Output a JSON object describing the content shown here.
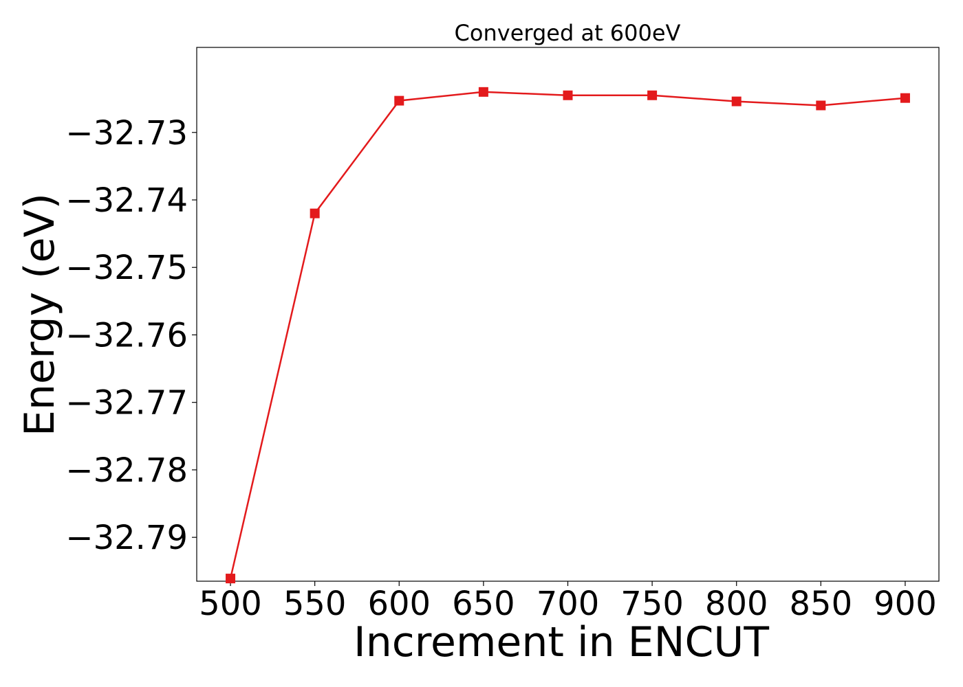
{
  "chart_data": {
    "type": "line",
    "title": "Converged at 600eV",
    "xlabel": "Increment in ENCUT",
    "ylabel": "Energy (eV)",
    "x": [
      500,
      550,
      600,
      650,
      700,
      750,
      800,
      850,
      900
    ],
    "x_tick_labels": [
      "500",
      "550",
      "600",
      "650",
      "700",
      "750",
      "800",
      "850",
      "900"
    ],
    "y_ticks": [
      -32.73,
      -32.74,
      -32.75,
      -32.76,
      -32.77,
      -32.78,
      -32.79
    ],
    "y_tick_labels": [
      "−32.73",
      "−32.74",
      "−32.75",
      "−32.76",
      "−32.77",
      "−32.78",
      "−32.79"
    ],
    "xlim": [
      480,
      920
    ],
    "ylim": [
      -32.7965,
      -32.7174
    ],
    "grid": false,
    "series": [
      {
        "values": [
          -32.7961,
          -32.742,
          -32.7253,
          -32.724,
          -32.7245,
          -32.7245,
          -32.7254,
          -32.726,
          -32.7249
        ],
        "color": "#e31a1c",
        "marker": "square"
      }
    ]
  }
}
